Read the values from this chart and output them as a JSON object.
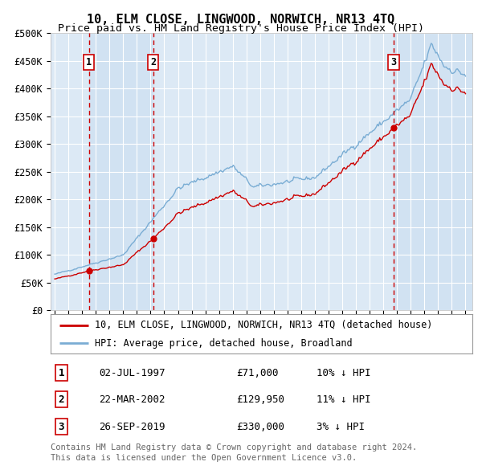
{
  "title": "10, ELM CLOSE, LINGWOOD, NORWICH, NR13 4TQ",
  "subtitle": "Price paid vs. HM Land Registry's House Price Index (HPI)",
  "ylim": [
    0,
    500000
  ],
  "yticks": [
    0,
    50000,
    100000,
    150000,
    200000,
    250000,
    300000,
    350000,
    400000,
    450000,
    500000
  ],
  "ytick_labels": [
    "£0",
    "£50K",
    "£100K",
    "£150K",
    "£200K",
    "£250K",
    "£300K",
    "£350K",
    "£400K",
    "£450K",
    "£500K"
  ],
  "xlim_start": 1994.7,
  "xlim_end": 2025.5,
  "sales": [
    {
      "num": 1,
      "year": 1997.5,
      "price": 71000,
      "date": "02-JUL-1997",
      "price_str": "£71,000",
      "hpi_str": "10% ↓ HPI"
    },
    {
      "num": 2,
      "year": 2002.2,
      "price": 129950,
      "date": "22-MAR-2002",
      "price_str": "£129,950",
      "hpi_str": "11% ↓ HPI"
    },
    {
      "num": 3,
      "year": 2019.75,
      "price": 330000,
      "date": "26-SEP-2019",
      "price_str": "£330,000",
      "hpi_str": "3% ↓ HPI"
    }
  ],
  "red_line_color": "#cc0000",
  "blue_line_color": "#7aadd4",
  "marker_color": "#cc0000",
  "dashed_color": "#cc0000",
  "background_color": "#ffffff",
  "plot_bg_color": "#dce9f5",
  "shade_color": "#c8ddf0",
  "grid_color": "#ffffff",
  "legend_label_red": "10, ELM CLOSE, LINGWOOD, NORWICH, NR13 4TQ (detached house)",
  "legend_label_blue": "HPI: Average price, detached house, Broadland",
  "footer_line1": "Contains HM Land Registry data © Crown copyright and database right 2024.",
  "footer_line2": "This data is licensed under the Open Government Licence v3.0.",
  "title_fontsize": 11,
  "subtitle_fontsize": 9.5,
  "tick_fontsize": 8,
  "legend_fontsize": 8.5,
  "table_fontsize": 9,
  "footer_fontsize": 7.5
}
